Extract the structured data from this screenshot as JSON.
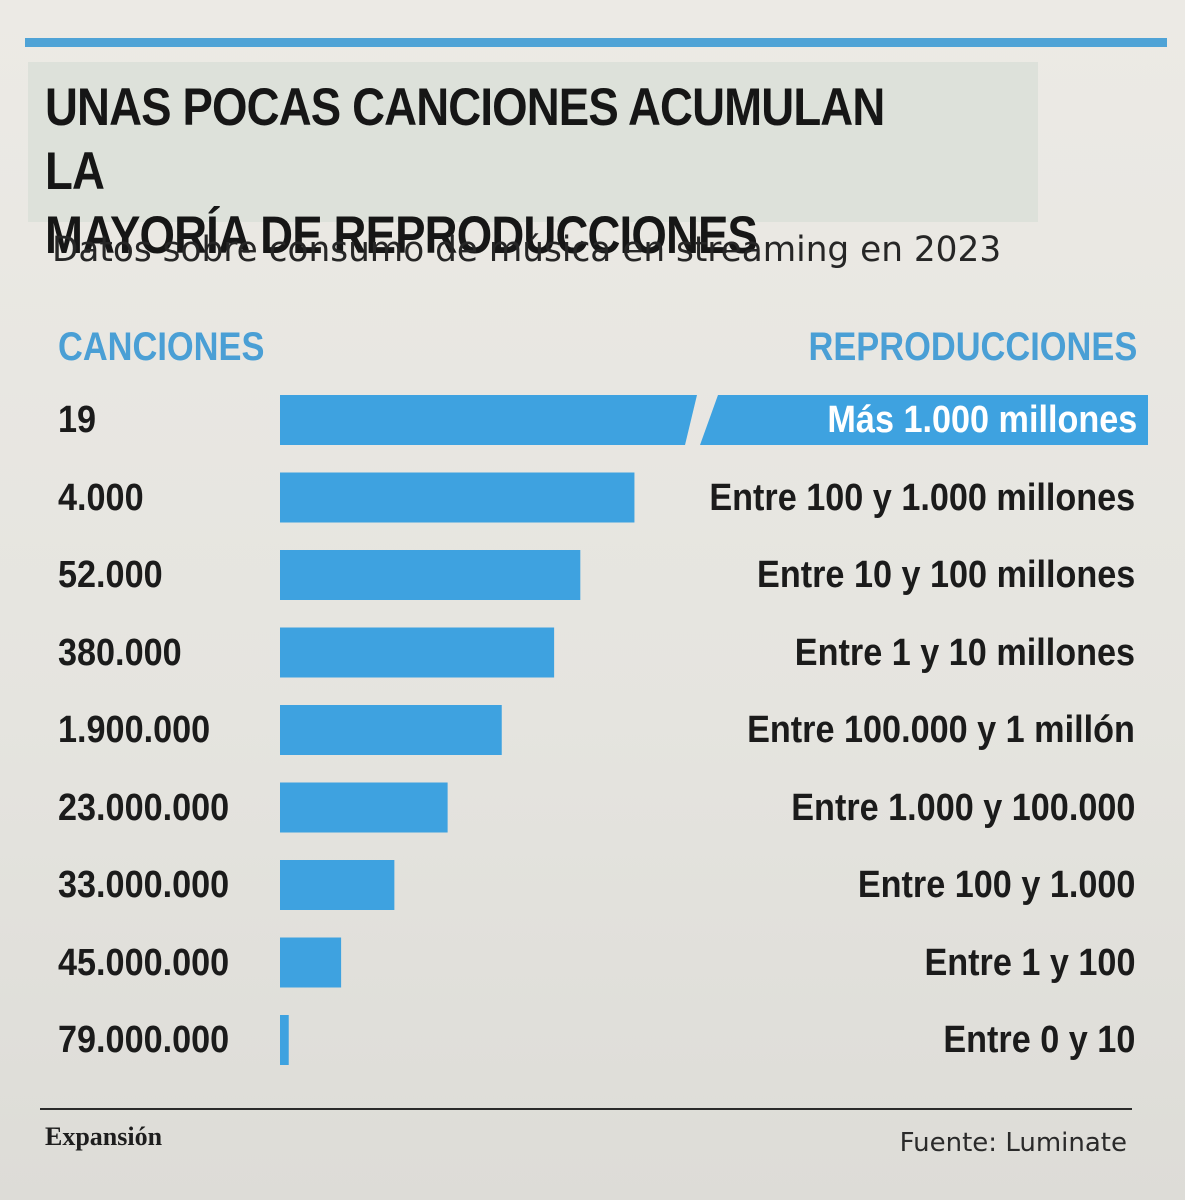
{
  "header": {
    "title": "UNAS POCAS CANCIONES ACUMULAN LA\nMAYORÍA DE REPRODUCCIONES",
    "subtitle": "Datos sobre consumo de música en streaming en 2023"
  },
  "colors": {
    "accent": "#4fa3d6",
    "bar": "#3ea2e0",
    "title_bg": "#dde1da"
  },
  "chart_data": {
    "type": "bar",
    "orientation": "horizontal",
    "title": "UNAS POCAS CANCIONES ACUMULAN LA MAYORÍA DE REPRODUCCIONES",
    "subtitle": "Datos sobre consumo de música en streaming en 2023",
    "left_header": "CANCIONES",
    "right_header": "REPRODUCCIONES",
    "axis_break_on_first": true,
    "rows": [
      {
        "songs": "19",
        "streams": "Más 1.000 millones",
        "relative_length": 1.0
      },
      {
        "songs": "4.000",
        "streams": "Entre 100 y 1.000 millones",
        "relative_length": 0.406
      },
      {
        "songs": "52.000",
        "streams": "Entre 10 y 100 millones",
        "relative_length": 0.344
      },
      {
        "songs": "380.000",
        "streams": "Entre 1 y 10 millones",
        "relative_length": 0.314
      },
      {
        "songs": "1.900.000",
        "streams": "Entre 100.000 y 1 millón",
        "relative_length": 0.254
      },
      {
        "songs": "23.000.000",
        "streams": "Entre 1.000 y 100.000",
        "relative_length": 0.192
      },
      {
        "songs": "33.000.000",
        "streams": "Entre 100 y 1.000",
        "relative_length": 0.131
      },
      {
        "songs": "45.000.000",
        "streams": "Entre 1 y 100",
        "relative_length": 0.07
      },
      {
        "songs": "79.000.000",
        "streams": "Entre 0 y 10",
        "relative_length": 0.01
      }
    ]
  },
  "footer": {
    "brand": "Expansión",
    "source": "Fuente: Luminate"
  }
}
